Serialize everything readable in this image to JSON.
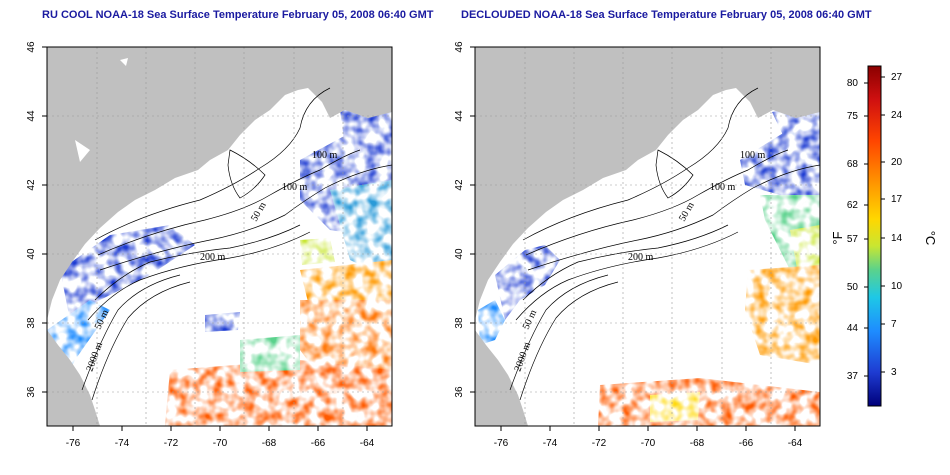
{
  "panels": [
    {
      "id": "left",
      "title": "RU COOL NOAA-18 Sea Surface Temperature February 05, 2008 06:40 GMT",
      "mode": "cloudy"
    },
    {
      "id": "right",
      "title": "DECLOUDED NOAA-18 Sea Surface Temperature February 05, 2008 06:40 GMT",
      "mode": "declouded"
    }
  ],
  "map": {
    "lon_range": [
      -77,
      -63
    ],
    "lat_range": [
      35,
      46
    ],
    "x_ticks": [
      "-76",
      "-74",
      "-72",
      "-70",
      "-68",
      "-66",
      "-64"
    ],
    "y_ticks": [
      "36",
      "38",
      "40",
      "42",
      "44",
      "46"
    ],
    "contour_labels": [
      "100 m",
      "100 m",
      "50 m",
      "200 m",
      "50 m",
      "2000 m"
    ],
    "colors": {
      "land": "#c0c0c0",
      "grid": "#9a9a9a",
      "contour": "#000000",
      "frame": "#000000"
    }
  },
  "colorbar": {
    "celsius_ticks": [
      "27",
      "24",
      "20",
      "17",
      "14",
      "10",
      "7",
      "3"
    ],
    "fahrenheit_ticks": [
      "80",
      "75",
      "68",
      "62",
      "57",
      "50",
      "44",
      "37"
    ],
    "unit_celsius": "°C",
    "unit_fahrenheit": "°F",
    "colors": [
      "#8b0000",
      "#d01010",
      "#ff4500",
      "#ff9900",
      "#ffd700",
      "#c8e632",
      "#5ad28c",
      "#1ec8e6",
      "#1e8cff",
      "#1e3cd2",
      "#00007a"
    ]
  }
}
